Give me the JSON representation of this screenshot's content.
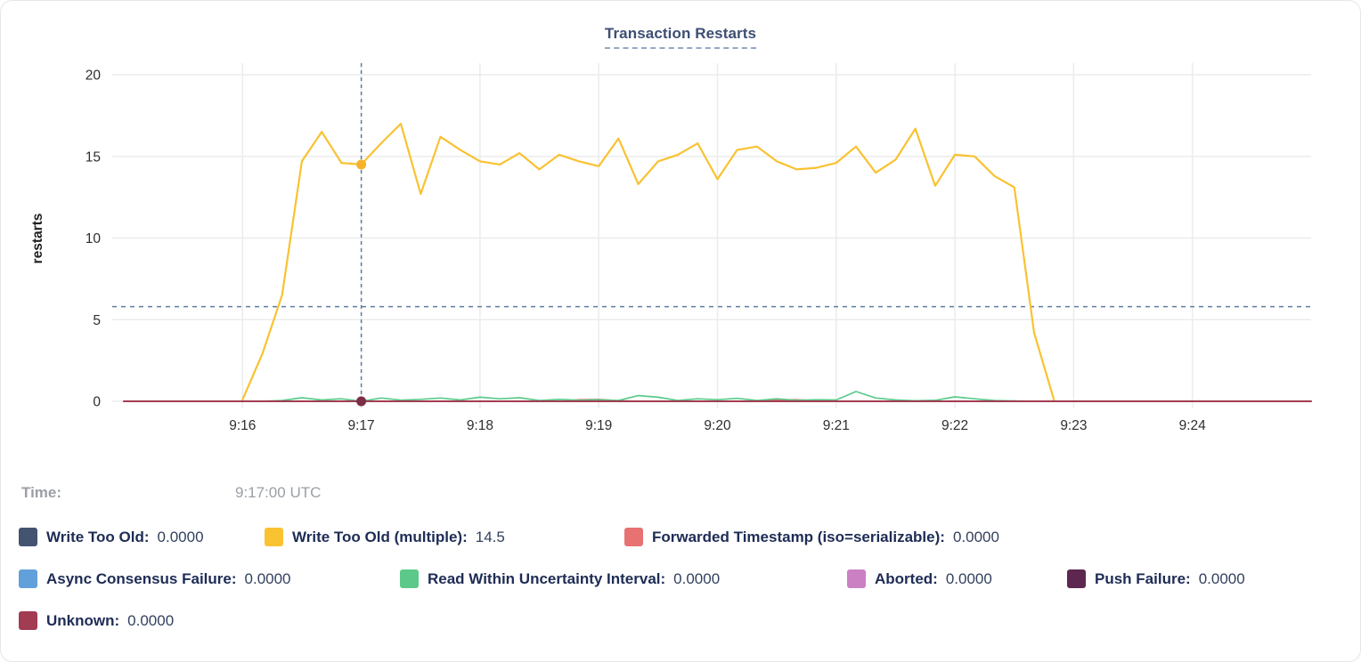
{
  "title": "Transaction Restarts",
  "time_row": {
    "label": "Time:",
    "value": "9:17:00 UTC"
  },
  "legend": {
    "items": [
      {
        "label": "Write Too Old:",
        "value": "0.0000",
        "color": "#44536F"
      },
      {
        "label": "Write Too Old (multiple):",
        "value": "14.5",
        "color": "#F9C231"
      },
      {
        "label": "Forwarded Timestamp (iso=serializable):",
        "value": "0.0000",
        "color": "#E87272"
      },
      {
        "label": "Async Consensus Failure:",
        "value": "0.0000",
        "color": "#62A0DB"
      },
      {
        "label": "Read Within Uncertainty Interval:",
        "value": "0.0000",
        "color": "#5CC98A"
      },
      {
        "label": "Aborted:",
        "value": "0.0000",
        "color": "#CB80C4"
      },
      {
        "label": "Push Failure:",
        "value": "0.0000",
        "color": "#5E2750"
      },
      {
        "label": "Unknown:",
        "value": "0.0000",
        "color": "#A23C52"
      }
    ]
  },
  "chart_data": {
    "type": "line",
    "title": "Transaction Restarts",
    "ylabel": "restarts",
    "ylim": [
      0,
      20
    ],
    "y_ticks": [
      0,
      5,
      10,
      15,
      20
    ],
    "x_unit": "seconds since 9:15:00 UTC",
    "x_range_seconds": [
      0,
      600
    ],
    "x_ticks": [
      {
        "t": 60,
        "label": "9:16"
      },
      {
        "t": 120,
        "label": "9:17"
      },
      {
        "t": 180,
        "label": "9:18"
      },
      {
        "t": 240,
        "label": "9:19"
      },
      {
        "t": 300,
        "label": "9:20"
      },
      {
        "t": 360,
        "label": "9:21"
      },
      {
        "t": 420,
        "label": "9:22"
      },
      {
        "t": 480,
        "label": "9:23"
      },
      {
        "t": 540,
        "label": "9:24"
      }
    ],
    "grid": true,
    "avg_line_value": 5.8,
    "hover": {
      "t": 120,
      "time_label": "9:17:00 UTC",
      "dots": [
        {
          "series": "Write Too Old (multiple)",
          "value": 14.5,
          "color": "#F5B32B"
        },
        {
          "series": "Unknown",
          "value": 0,
          "color": "#7D2E46"
        }
      ]
    },
    "series": [
      {
        "name": "Write Too Old",
        "color": "#44536F",
        "width": 1.5,
        "points": [
          [
            0,
            0
          ],
          [
            600,
            0
          ]
        ]
      },
      {
        "name": "Async Consensus Failure",
        "color": "#62A0DB",
        "width": 1.5,
        "points": [
          [
            0,
            0
          ],
          [
            600,
            0
          ]
        ]
      },
      {
        "name": "Aborted",
        "color": "#CB80C4",
        "width": 1.5,
        "points": [
          [
            0,
            0
          ],
          [
            600,
            0
          ]
        ]
      },
      {
        "name": "Push Failure",
        "color": "#5E2750",
        "width": 1.5,
        "points": [
          [
            0,
            0
          ],
          [
            600,
            0
          ]
        ]
      },
      {
        "name": "Forwarded Timestamp (iso=serializable)",
        "color": "#E87272",
        "width": 1.7,
        "points": [
          [
            0,
            0
          ],
          [
            220,
            0
          ],
          [
            230,
            0.1
          ],
          [
            240,
            0.12
          ],
          [
            250,
            0.04
          ],
          [
            260,
            0
          ],
          [
            320,
            0
          ],
          [
            330,
            0.1
          ],
          [
            340,
            0.1
          ],
          [
            350,
            0.04
          ],
          [
            360,
            0
          ],
          [
            600,
            0
          ]
        ]
      },
      {
        "name": "Read Within Uncertainty Interval",
        "color": "#5CC98A",
        "width": 1.7,
        "points": [
          [
            0,
            0
          ],
          [
            70,
            0
          ],
          [
            80,
            0.05
          ],
          [
            90,
            0.22
          ],
          [
            100,
            0.08
          ],
          [
            110,
            0.15
          ],
          [
            120,
            0
          ],
          [
            130,
            0.2
          ],
          [
            140,
            0.07
          ],
          [
            150,
            0.12
          ],
          [
            160,
            0.2
          ],
          [
            170,
            0.08
          ],
          [
            180,
            0.25
          ],
          [
            190,
            0.15
          ],
          [
            200,
            0.22
          ],
          [
            210,
            0.05
          ],
          [
            220,
            0.12
          ],
          [
            230,
            0.06
          ],
          [
            240,
            0.1
          ],
          [
            250,
            0.05
          ],
          [
            260,
            0.35
          ],
          [
            270,
            0.25
          ],
          [
            280,
            0.05
          ],
          [
            290,
            0.15
          ],
          [
            300,
            0.1
          ],
          [
            310,
            0.18
          ],
          [
            320,
            0.05
          ],
          [
            330,
            0.15
          ],
          [
            340,
            0.06
          ],
          [
            350,
            0.1
          ],
          [
            360,
            0.08
          ],
          [
            370,
            0.6
          ],
          [
            380,
            0.2
          ],
          [
            390,
            0.08
          ],
          [
            400,
            0.03
          ],
          [
            410,
            0.06
          ],
          [
            420,
            0.27
          ],
          [
            430,
            0.15
          ],
          [
            440,
            0.05
          ],
          [
            450,
            0.02
          ],
          [
            460,
            0
          ],
          [
            470,
            0
          ]
        ]
      },
      {
        "name": "Write Too Old (multiple)",
        "color": "#F9C231",
        "width": 2.2,
        "points": [
          [
            60,
            0.1
          ],
          [
            70,
            2.9
          ],
          [
            80,
            6.5
          ],
          [
            90,
            14.7
          ],
          [
            100,
            16.5
          ],
          [
            110,
            14.6
          ],
          [
            120,
            14.5
          ],
          [
            130,
            15.8
          ],
          [
            140,
            17.0
          ],
          [
            150,
            12.7
          ],
          [
            160,
            16.2
          ],
          [
            170,
            15.4
          ],
          [
            180,
            14.7
          ],
          [
            190,
            14.5
          ],
          [
            200,
            15.2
          ],
          [
            210,
            14.2
          ],
          [
            220,
            15.1
          ],
          [
            230,
            14.7
          ],
          [
            240,
            14.4
          ],
          [
            250,
            16.1
          ],
          [
            260,
            13.3
          ],
          [
            270,
            14.7
          ],
          [
            280,
            15.1
          ],
          [
            290,
            15.8
          ],
          [
            300,
            13.6
          ],
          [
            310,
            15.4
          ],
          [
            320,
            15.6
          ],
          [
            330,
            14.7
          ],
          [
            340,
            14.2
          ],
          [
            350,
            14.3
          ],
          [
            360,
            14.6
          ],
          [
            370,
            15.6
          ],
          [
            380,
            14.0
          ],
          [
            390,
            14.8
          ],
          [
            400,
            16.7
          ],
          [
            410,
            13.2
          ],
          [
            420,
            15.1
          ],
          [
            430,
            15.0
          ],
          [
            440,
            13.8
          ],
          [
            450,
            13.1
          ],
          [
            460,
            4.2
          ],
          [
            470,
            0.1
          ]
        ]
      },
      {
        "name": "Unknown",
        "color": "#A23C52",
        "width": 2,
        "points": [
          [
            0,
            0
          ],
          [
            600,
            0
          ]
        ]
      }
    ],
    "style": {
      "grid_color": "#ececec",
      "dashed_line_color": "#5c7da1",
      "tick_label_color": "#2e2e2e",
      "axis_title_color": "#1f1f1f"
    }
  }
}
